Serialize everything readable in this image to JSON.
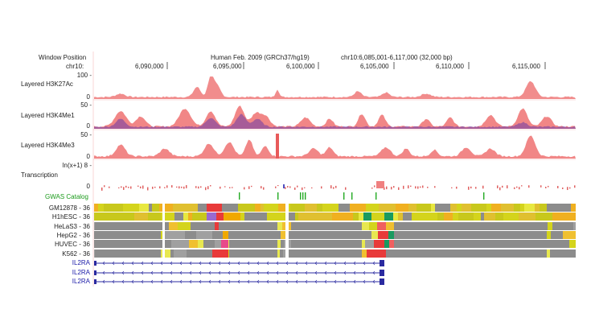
{
  "header": {
    "window_position_label": "Window Position",
    "chrom_label": "chr10:",
    "assembly": "Human Feb. 2009 (GRCh37/hg19)",
    "position": "chr10:6,085,001-6,117,000 (32,000 bp)",
    "ruler_ticks": [
      "6,090,000",
      "6,095,000",
      "6,100,000",
      "6,105,000",
      "6,110,000",
      "6,115,000"
    ]
  },
  "tracks": {
    "h3k27ac": {
      "label": "Layered H3K27Ac",
      "max": "100 -",
      "min": "0"
    },
    "h3k4me1": {
      "label": "Layered H3K4Me1",
      "max": "50 -",
      "min": "0"
    },
    "h3k4me3": {
      "label": "Layered H3K4Me3",
      "max": "50 -",
      "min": "0"
    },
    "transcription": {
      "label": "Transcription",
      "max": "ln(x+1) 8 -",
      "min": "0"
    },
    "gwas": {
      "label": "GWAS Catalog"
    },
    "chromhmm": [
      {
        "label": "GM12878 - 36"
      },
      {
        "label": "H1hESC - 36"
      },
      {
        "label": "HeLaS3 - 36"
      },
      {
        "label": "HepG2 - 36"
      },
      {
        "label": "HUVEC - 36"
      },
      {
        "label": "K562 - 36"
      }
    ],
    "genes": [
      {
        "label": "IL2RA"
      },
      {
        "label": "IL2RA"
      },
      {
        "label": "IL2RA"
      }
    ]
  },
  "colors": {
    "signal_pink": "#f08080",
    "border_pink": "#f4b8b8",
    "gene_blue": "#2a2aa0",
    "gwas_green": "#22aa22",
    "state_grey": "#8c8c8c",
    "state_yellow": "#d4d41c",
    "state_orange": "#f0a800",
    "state_red": "#e83a3a"
  }
}
